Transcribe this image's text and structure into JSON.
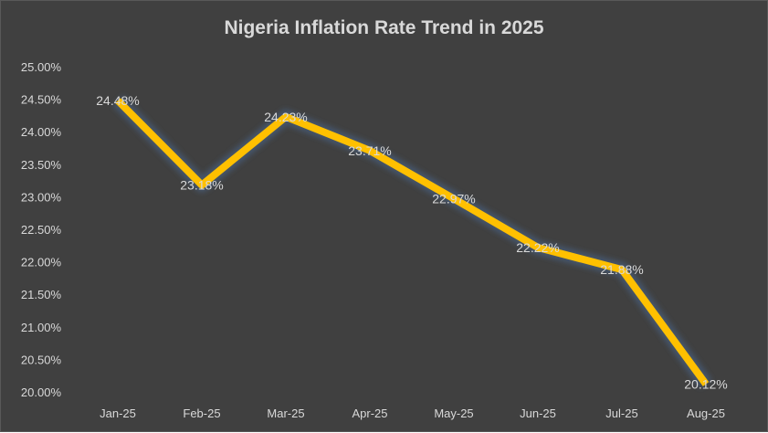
{
  "chart_data": {
    "type": "line",
    "title": "Nigeria Inflation Rate Trend in 2025",
    "categories": [
      "Jan-25",
      "Feb-25",
      "Mar-25",
      "Apr-25",
      "May-25",
      "Jun-25",
      "Jul-25",
      "Aug-25"
    ],
    "values": [
      24.48,
      23.18,
      24.23,
      23.71,
      22.97,
      22.22,
      21.88,
      20.12
    ],
    "data_labels": [
      "24.48%",
      "23.18%",
      "24.23%",
      "23.71%",
      "22.97%",
      "22.22%",
      "21.88%",
      "20.12%"
    ],
    "yticks": [
      "20.00%",
      "20.50%",
      "21.00%",
      "21.50%",
      "22.00%",
      "22.50%",
      "23.00%",
      "23.50%",
      "24.00%",
      "24.50%",
      "25.00%"
    ],
    "ylim": [
      20,
      25
    ],
    "xlabel": "",
    "ylabel": "",
    "grid": false,
    "legend": "none",
    "colors": {
      "line": "#FFC000",
      "background": "#404040",
      "text": "#D9D9D9",
      "glow": "#44546A"
    }
  }
}
